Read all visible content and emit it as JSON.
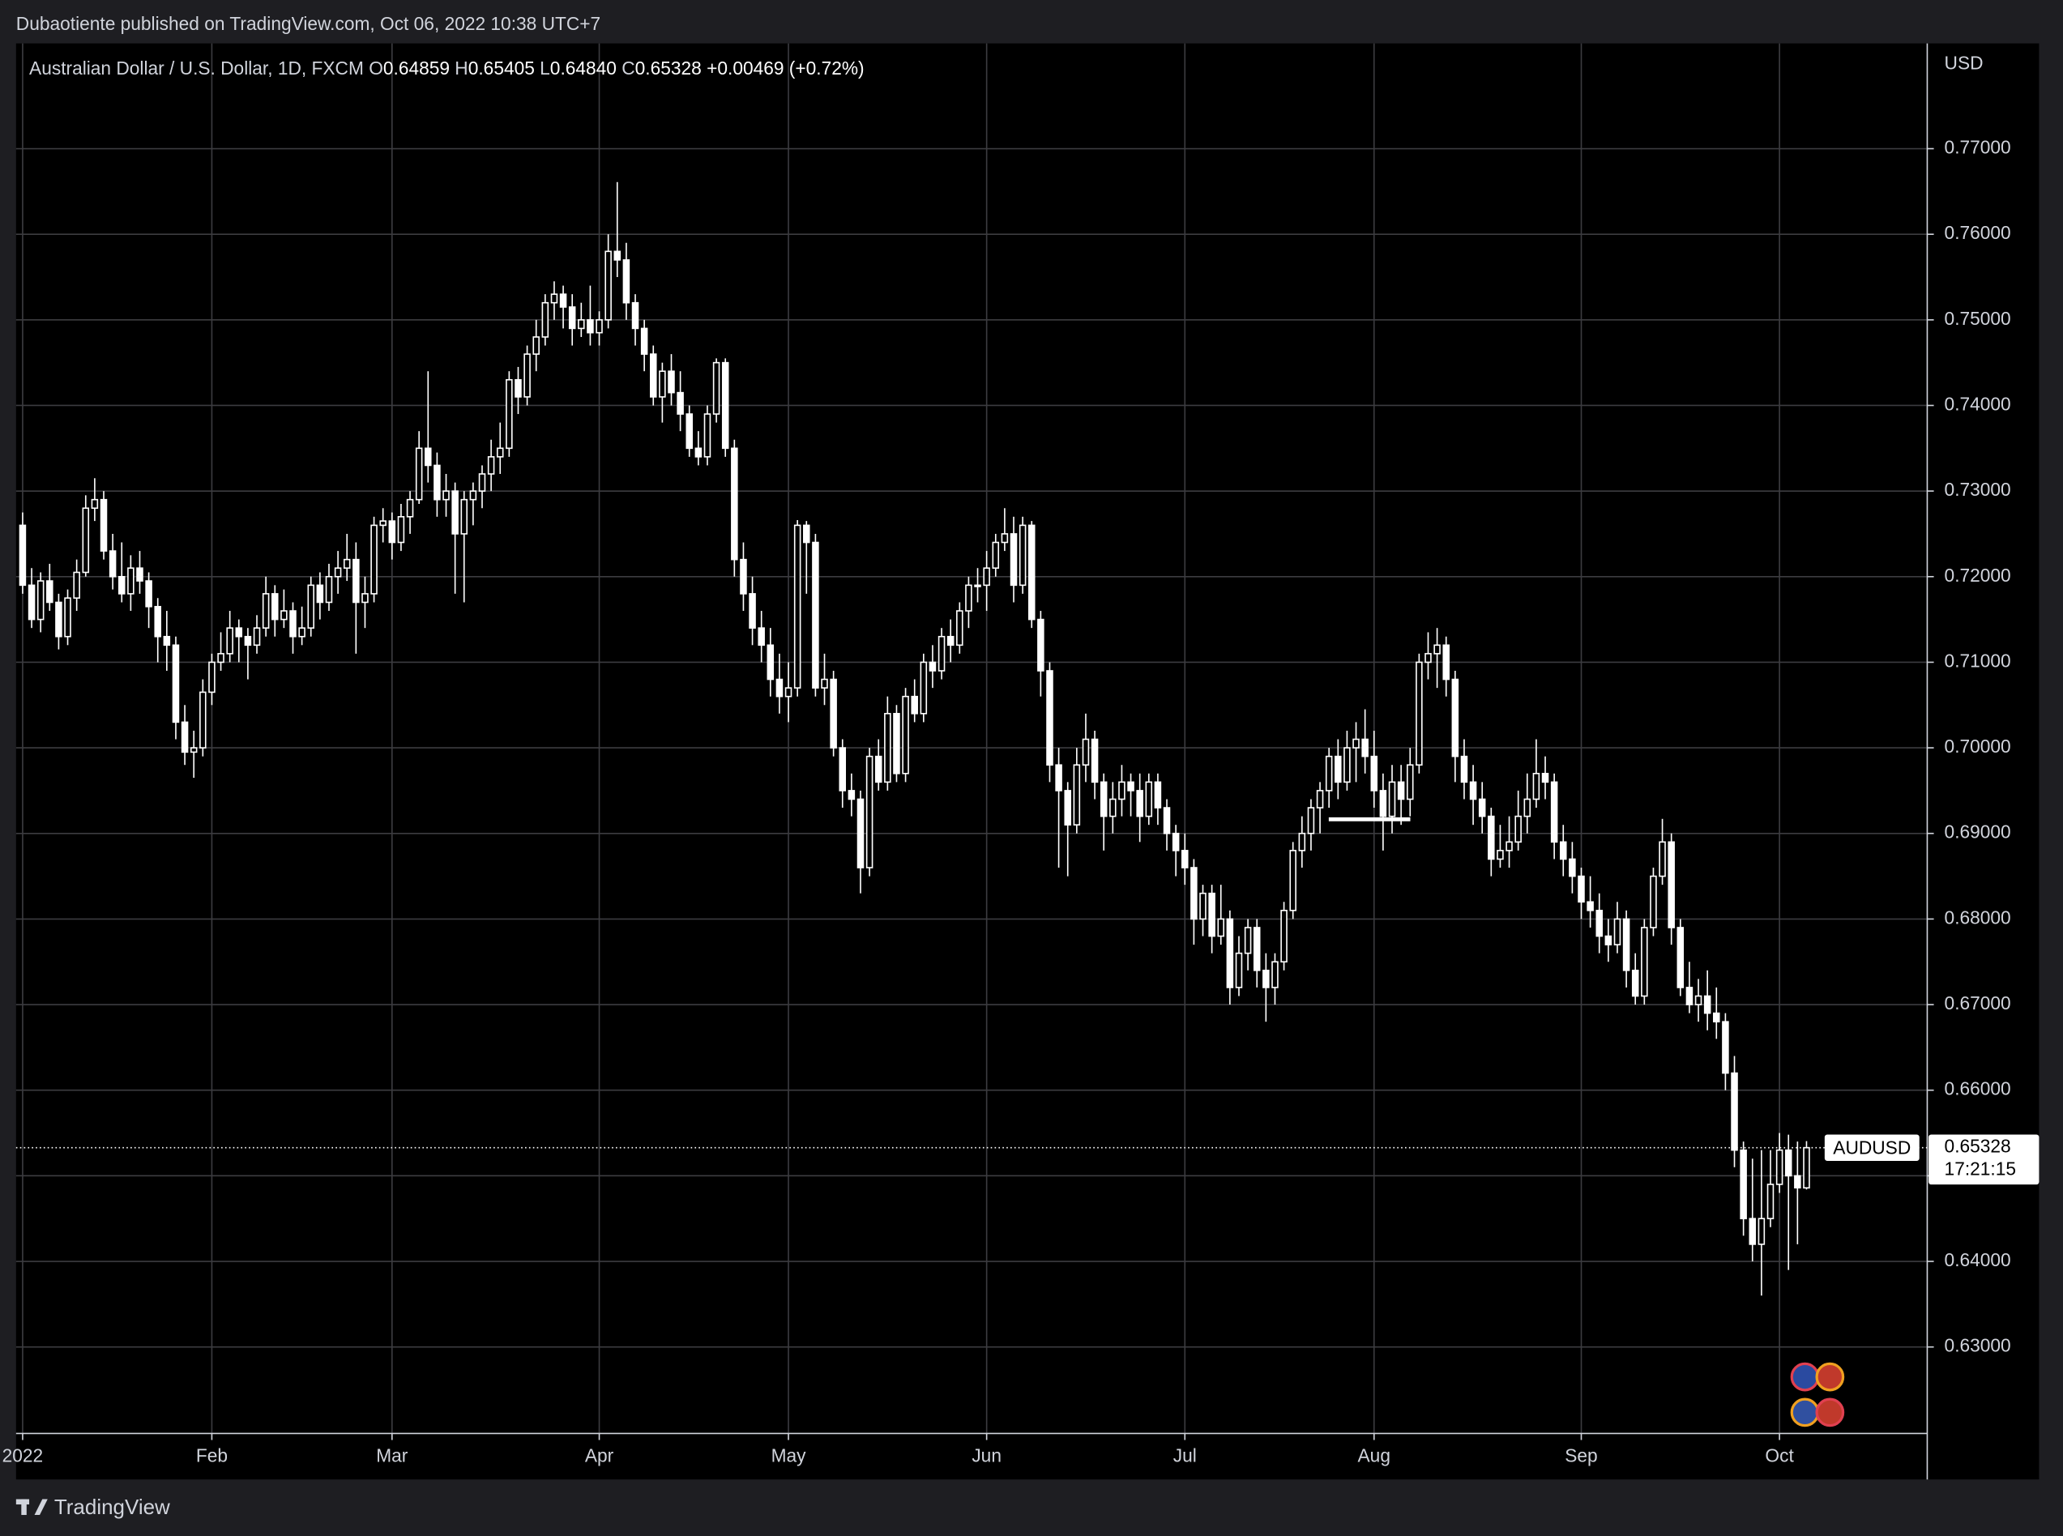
{
  "header": {
    "published": "Dubaotiente published on TradingView.com, Oct 06, 2022 10:38 UTC+7",
    "footer": "TradingView"
  },
  "chart_data": {
    "type": "candlestick",
    "legend": {
      "symbol": "Australian Dollar / U.S. Dollar, 1D, FXCM",
      "open_key": "O",
      "open": "0.64859",
      "high_key": "H",
      "high": "0.65405",
      "low_key": "L",
      "low": "0.64840",
      "close_key": "C",
      "close": "0.65328",
      "change": "+0.00469 (+0.72%)"
    },
    "y_unit": "USD",
    "price_tag": {
      "symbol": "AUDUSD",
      "value": 0.65328,
      "label": "0.65328",
      "countdown": "17:21:15"
    },
    "colors": {
      "up": "#000000",
      "down": "#ffffff",
      "wick": "#ffffff",
      "grid": "#3c3c40"
    },
    "grid": true,
    "xlim": [
      -0.73,
      211.4
    ],
    "xticks": [
      {
        "value": 0,
        "label": "2022"
      },
      {
        "value": 21,
        "label": "Feb"
      },
      {
        "value": 41,
        "label": "Mar"
      },
      {
        "value": 64,
        "label": "Apr"
      },
      {
        "value": 85,
        "label": "May"
      },
      {
        "value": 107,
        "label": "Jun"
      },
      {
        "value": 129,
        "label": "Jul"
      },
      {
        "value": 150,
        "label": "Aug"
      },
      {
        "value": 173,
        "label": "Sep"
      },
      {
        "value": 195,
        "label": "Oct"
      }
    ],
    "ylim": [
      0.6199,
      0.7823
    ],
    "yticks": [
      {
        "value": 0.63,
        "label": "0.63000"
      },
      {
        "value": 0.64,
        "label": "0.64000"
      },
      {
        "value": 0.65,
        "label": "0.65000"
      },
      {
        "value": 0.66,
        "label": "0.66000"
      },
      {
        "value": 0.67,
        "label": "0.67000"
      },
      {
        "value": 0.68,
        "label": "0.68000"
      },
      {
        "value": 0.69,
        "label": "0.69000"
      },
      {
        "value": 0.7,
        "label": "0.70000"
      },
      {
        "value": 0.71,
        "label": "0.71000"
      },
      {
        "value": 0.72,
        "label": "0.72000"
      },
      {
        "value": 0.73,
        "label": "0.73000"
      },
      {
        "value": 0.74,
        "label": "0.74000"
      },
      {
        "value": 0.75,
        "label": "0.75000"
      },
      {
        "value": 0.76,
        "label": "0.76000"
      },
      {
        "value": 0.77,
        "label": "0.77000"
      }
    ],
    "candles": [
      [
        0.726,
        0.7275,
        0.718,
        0.719
      ],
      [
        0.719,
        0.721,
        0.714,
        0.715
      ],
      [
        0.715,
        0.7205,
        0.7135,
        0.7195
      ],
      [
        0.7195,
        0.7215,
        0.716,
        0.717
      ],
      [
        0.717,
        0.718,
        0.7115,
        0.713
      ],
      [
        0.713,
        0.7185,
        0.712,
        0.7175
      ],
      [
        0.7175,
        0.722,
        0.716,
        0.7205
      ],
      [
        0.7205,
        0.7295,
        0.72,
        0.728
      ],
      [
        0.728,
        0.7315,
        0.7265,
        0.729
      ],
      [
        0.729,
        0.73,
        0.722,
        0.723
      ],
      [
        0.723,
        0.725,
        0.7185,
        0.72
      ],
      [
        0.72,
        0.724,
        0.717,
        0.718
      ],
      [
        0.718,
        0.7225,
        0.716,
        0.721
      ],
      [
        0.721,
        0.723,
        0.718,
        0.7195
      ],
      [
        0.7195,
        0.7205,
        0.714,
        0.7165
      ],
      [
        0.7165,
        0.7175,
        0.71,
        0.713
      ],
      [
        0.713,
        0.716,
        0.709,
        0.712
      ],
      [
        0.712,
        0.713,
        0.701,
        0.703
      ],
      [
        0.703,
        0.705,
        0.698,
        0.6995
      ],
      [
        0.6995,
        0.702,
        0.6965,
        0.7
      ],
      [
        0.7,
        0.708,
        0.699,
        0.7065
      ],
      [
        0.7065,
        0.711,
        0.705,
        0.71
      ],
      [
        0.71,
        0.7135,
        0.709,
        0.711
      ],
      [
        0.711,
        0.716,
        0.71,
        0.714
      ],
      [
        0.714,
        0.715,
        0.71,
        0.713
      ],
      [
        0.713,
        0.714,
        0.708,
        0.712
      ],
      [
        0.712,
        0.7155,
        0.711,
        0.714
      ],
      [
        0.714,
        0.72,
        0.713,
        0.718
      ],
      [
        0.718,
        0.719,
        0.713,
        0.715
      ],
      [
        0.715,
        0.7185,
        0.714,
        0.716
      ],
      [
        0.716,
        0.717,
        0.711,
        0.713
      ],
      [
        0.713,
        0.7165,
        0.712,
        0.714
      ],
      [
        0.714,
        0.72,
        0.713,
        0.719
      ],
      [
        0.719,
        0.7205,
        0.715,
        0.717
      ],
      [
        0.717,
        0.7215,
        0.716,
        0.72
      ],
      [
        0.72,
        0.723,
        0.718,
        0.721
      ],
      [
        0.721,
        0.725,
        0.7195,
        0.722
      ],
      [
        0.722,
        0.724,
        0.711,
        0.717
      ],
      [
        0.717,
        0.72,
        0.714,
        0.718
      ],
      [
        0.718,
        0.727,
        0.717,
        0.726
      ],
      [
        0.726,
        0.728,
        0.724,
        0.7265
      ],
      [
        0.7265,
        0.7275,
        0.722,
        0.724
      ],
      [
        0.724,
        0.7285,
        0.723,
        0.727
      ],
      [
        0.727,
        0.73,
        0.725,
        0.729
      ],
      [
        0.729,
        0.737,
        0.7285,
        0.735
      ],
      [
        0.735,
        0.744,
        0.731,
        0.733
      ],
      [
        0.733,
        0.7345,
        0.727,
        0.729
      ],
      [
        0.729,
        0.732,
        0.727,
        0.73
      ],
      [
        0.73,
        0.731,
        0.718,
        0.725
      ],
      [
        0.725,
        0.73,
        0.717,
        0.729
      ],
      [
        0.729,
        0.731,
        0.726,
        0.73
      ],
      [
        0.73,
        0.733,
        0.728,
        0.732
      ],
      [
        0.732,
        0.736,
        0.73,
        0.734
      ],
      [
        0.734,
        0.738,
        0.732,
        0.735
      ],
      [
        0.735,
        0.744,
        0.734,
        0.743
      ],
      [
        0.743,
        0.7445,
        0.739,
        0.741
      ],
      [
        0.741,
        0.747,
        0.74,
        0.746
      ],
      [
        0.746,
        0.75,
        0.744,
        0.748
      ],
      [
        0.748,
        0.753,
        0.747,
        0.752
      ],
      [
        0.752,
        0.7545,
        0.75,
        0.753
      ],
      [
        0.753,
        0.754,
        0.749,
        0.7515
      ],
      [
        0.7515,
        0.753,
        0.747,
        0.749
      ],
      [
        0.749,
        0.752,
        0.748,
        0.75
      ],
      [
        0.75,
        0.754,
        0.747,
        0.7485
      ],
      [
        0.7485,
        0.751,
        0.747,
        0.75
      ],
      [
        0.75,
        0.76,
        0.749,
        0.758
      ],
      [
        0.758,
        0.7661,
        0.755,
        0.757
      ],
      [
        0.757,
        0.759,
        0.75,
        0.752
      ],
      [
        0.752,
        0.753,
        0.747,
        0.749
      ],
      [
        0.749,
        0.75,
        0.744,
        0.746
      ],
      [
        0.746,
        0.747,
        0.74,
        0.741
      ],
      [
        0.741,
        0.745,
        0.738,
        0.744
      ],
      [
        0.744,
        0.746,
        0.74,
        0.7415
      ],
      [
        0.7415,
        0.744,
        0.737,
        0.739
      ],
      [
        0.739,
        0.74,
        0.734,
        0.735
      ],
      [
        0.735,
        0.737,
        0.733,
        0.734
      ],
      [
        0.734,
        0.74,
        0.733,
        0.739
      ],
      [
        0.739,
        0.7455,
        0.738,
        0.745
      ],
      [
        0.745,
        0.7455,
        0.734,
        0.735
      ],
      [
        0.735,
        0.736,
        0.72,
        0.722
      ],
      [
        0.722,
        0.724,
        0.716,
        0.718
      ],
      [
        0.718,
        0.72,
        0.712,
        0.714
      ],
      [
        0.714,
        0.716,
        0.71,
        0.712
      ],
      [
        0.712,
        0.714,
        0.706,
        0.708
      ],
      [
        0.708,
        0.711,
        0.704,
        0.706
      ],
      [
        0.706,
        0.71,
        0.703,
        0.707
      ],
      [
        0.707,
        0.7266,
        0.706,
        0.726
      ],
      [
        0.726,
        0.7265,
        0.718,
        0.724
      ],
      [
        0.724,
        0.725,
        0.706,
        0.707
      ],
      [
        0.707,
        0.711,
        0.705,
        0.708
      ],
      [
        0.708,
        0.709,
        0.699,
        0.7
      ],
      [
        0.7,
        0.701,
        0.693,
        0.695
      ],
      [
        0.695,
        0.697,
        0.692,
        0.694
      ],
      [
        0.694,
        0.695,
        0.683,
        0.686
      ],
      [
        0.686,
        0.7,
        0.685,
        0.699
      ],
      [
        0.699,
        0.701,
        0.695,
        0.696
      ],
      [
        0.696,
        0.706,
        0.695,
        0.704
      ],
      [
        0.704,
        0.705,
        0.696,
        0.697
      ],
      [
        0.697,
        0.707,
        0.696,
        0.706
      ],
      [
        0.706,
        0.708,
        0.703,
        0.704
      ],
      [
        0.704,
        0.711,
        0.703,
        0.71
      ],
      [
        0.71,
        0.712,
        0.707,
        0.709
      ],
      [
        0.709,
        0.714,
        0.708,
        0.713
      ],
      [
        0.713,
        0.715,
        0.71,
        0.712
      ],
      [
        0.712,
        0.717,
        0.711,
        0.716
      ],
      [
        0.716,
        0.72,
        0.714,
        0.719
      ],
      [
        0.719,
        0.721,
        0.717,
        0.719
      ],
      [
        0.719,
        0.723,
        0.716,
        0.721
      ],
      [
        0.721,
        0.725,
        0.72,
        0.724
      ],
      [
        0.724,
        0.728,
        0.723,
        0.725
      ],
      [
        0.725,
        0.727,
        0.717,
        0.719
      ],
      [
        0.719,
        0.727,
        0.718,
        0.726
      ],
      [
        0.726,
        0.7265,
        0.714,
        0.715
      ],
      [
        0.715,
        0.716,
        0.706,
        0.709
      ],
      [
        0.709,
        0.71,
        0.696,
        0.698
      ],
      [
        0.698,
        0.7,
        0.686,
        0.695
      ],
      [
        0.695,
        0.696,
        0.685,
        0.691
      ],
      [
        0.691,
        0.7,
        0.69,
        0.698
      ],
      [
        0.698,
        0.704,
        0.696,
        0.701
      ],
      [
        0.701,
        0.702,
        0.694,
        0.696
      ],
      [
        0.696,
        0.697,
        0.688,
        0.692
      ],
      [
        0.692,
        0.696,
        0.69,
        0.694
      ],
      [
        0.694,
        0.698,
        0.692,
        0.696
      ],
      [
        0.696,
        0.697,
        0.692,
        0.695
      ],
      [
        0.695,
        0.697,
        0.689,
        0.692
      ],
      [
        0.692,
        0.697,
        0.691,
        0.696
      ],
      [
        0.696,
        0.697,
        0.691,
        0.693
      ],
      [
        0.693,
        0.694,
        0.688,
        0.69
      ],
      [
        0.69,
        0.691,
        0.685,
        0.688
      ],
      [
        0.688,
        0.69,
        0.684,
        0.686
      ],
      [
        0.686,
        0.687,
        0.677,
        0.68
      ],
      [
        0.68,
        0.684,
        0.678,
        0.683
      ],
      [
        0.683,
        0.684,
        0.676,
        0.678
      ],
      [
        0.678,
        0.684,
        0.677,
        0.68
      ],
      [
        0.68,
        0.681,
        0.67,
        0.672
      ],
      [
        0.672,
        0.678,
        0.671,
        0.676
      ],
      [
        0.676,
        0.68,
        0.674,
        0.679
      ],
      [
        0.679,
        0.68,
        0.672,
        0.674
      ],
      [
        0.674,
        0.676,
        0.668,
        0.672
      ],
      [
        0.672,
        0.676,
        0.67,
        0.675
      ],
      [
        0.675,
        0.682,
        0.674,
        0.681
      ],
      [
        0.681,
        0.689,
        0.68,
        0.688
      ],
      [
        0.688,
        0.692,
        0.686,
        0.69
      ],
      [
        0.69,
        0.694,
        0.688,
        0.693
      ],
      [
        0.693,
        0.696,
        0.69,
        0.695
      ],
      [
        0.695,
        0.7,
        0.693,
        0.699
      ],
      [
        0.699,
        0.701,
        0.694,
        0.696
      ],
      [
        0.696,
        0.702,
        0.695,
        0.7
      ],
      [
        0.7,
        0.703,
        0.696,
        0.701
      ],
      [
        0.701,
        0.7045,
        0.697,
        0.699
      ],
      [
        0.699,
        0.702,
        0.693,
        0.695
      ],
      [
        0.695,
        0.697,
        0.688,
        0.692
      ],
      [
        0.692,
        0.698,
        0.69,
        0.696
      ],
      [
        0.696,
        0.698,
        0.691,
        0.694
      ],
      [
        0.694,
        0.7,
        0.692,
        0.698
      ],
      [
        0.698,
        0.711,
        0.697,
        0.71
      ],
      [
        0.71,
        0.7135,
        0.708,
        0.711
      ],
      [
        0.711,
        0.714,
        0.707,
        0.712
      ],
      [
        0.712,
        0.713,
        0.706,
        0.708
      ],
      [
        0.708,
        0.709,
        0.696,
        0.699
      ],
      [
        0.699,
        0.701,
        0.694,
        0.696
      ],
      [
        0.696,
        0.698,
        0.691,
        0.694
      ],
      [
        0.694,
        0.696,
        0.69,
        0.692
      ],
      [
        0.692,
        0.693,
        0.685,
        0.687
      ],
      [
        0.687,
        0.691,
        0.686,
        0.688
      ],
      [
        0.688,
        0.692,
        0.686,
        0.689
      ],
      [
        0.689,
        0.695,
        0.688,
        0.692
      ],
      [
        0.692,
        0.697,
        0.69,
        0.694
      ],
      [
        0.694,
        0.701,
        0.693,
        0.697
      ],
      [
        0.697,
        0.699,
        0.694,
        0.696
      ],
      [
        0.696,
        0.697,
        0.687,
        0.689
      ],
      [
        0.689,
        0.691,
        0.685,
        0.687
      ],
      [
        0.687,
        0.689,
        0.683,
        0.685
      ],
      [
        0.685,
        0.686,
        0.68,
        0.682
      ],
      [
        0.682,
        0.685,
        0.679,
        0.681
      ],
      [
        0.681,
        0.683,
        0.676,
        0.678
      ],
      [
        0.678,
        0.68,
        0.675,
        0.677
      ],
      [
        0.677,
        0.682,
        0.676,
        0.68
      ],
      [
        0.68,
        0.681,
        0.672,
        0.674
      ],
      [
        0.674,
        0.676,
        0.67,
        0.671
      ],
      [
        0.671,
        0.68,
        0.67,
        0.679
      ],
      [
        0.679,
        0.686,
        0.678,
        0.685
      ],
      [
        0.685,
        0.6917,
        0.684,
        0.689
      ],
      [
        0.689,
        0.69,
        0.677,
        0.679
      ],
      [
        0.679,
        0.68,
        0.671,
        0.672
      ],
      [
        0.672,
        0.675,
        0.669,
        0.67
      ],
      [
        0.67,
        0.673,
        0.668,
        0.671
      ],
      [
        0.671,
        0.674,
        0.667,
        0.669
      ],
      [
        0.669,
        0.672,
        0.666,
        0.668
      ],
      [
        0.668,
        0.669,
        0.66,
        0.662
      ],
      [
        0.662,
        0.664,
        0.651,
        0.653
      ],
      [
        0.653,
        0.654,
        0.643,
        0.645
      ],
      [
        0.645,
        0.652,
        0.64,
        0.642
      ],
      [
        0.642,
        0.653,
        0.636,
        0.645
      ],
      [
        0.645,
        0.653,
        0.644,
        0.649
      ],
      [
        0.649,
        0.655,
        0.648,
        0.653
      ],
      [
        0.653,
        0.6548,
        0.639,
        0.65
      ],
      [
        0.65,
        0.654,
        0.642,
        0.6486
      ],
      [
        0.64859,
        0.65405,
        0.6484,
        0.65328
      ]
    ]
  }
}
